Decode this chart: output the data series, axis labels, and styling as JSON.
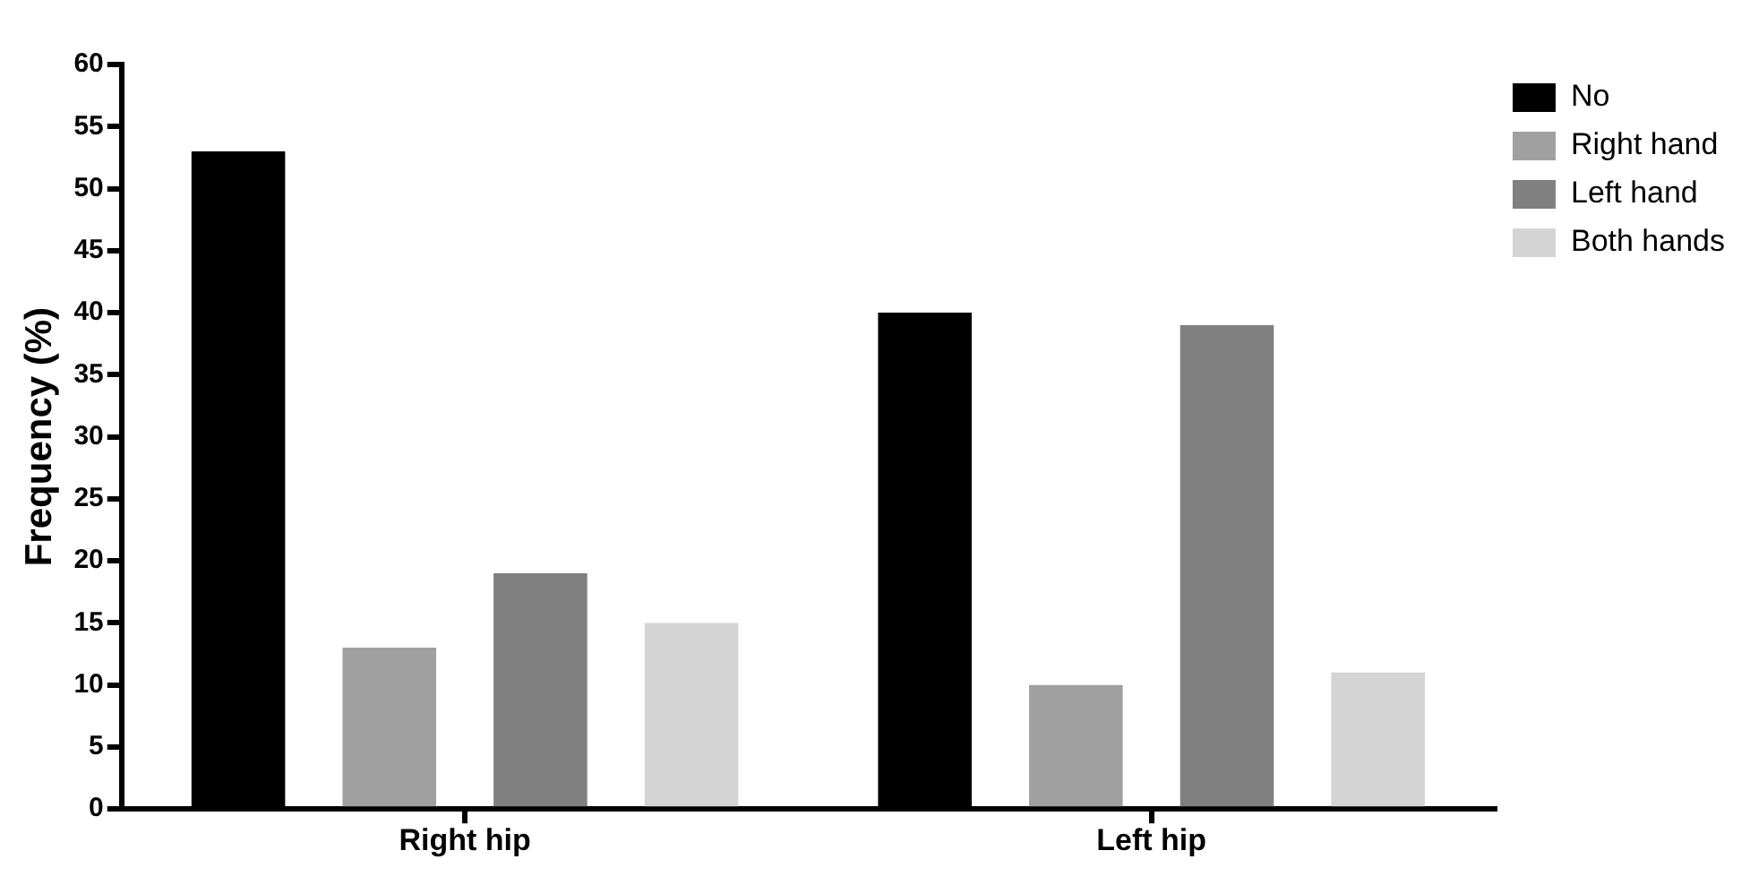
{
  "chart_data": {
    "type": "bar",
    "ylabel": "Frequency (%)",
    "categories": [
      "Right hip",
      "Left hip"
    ],
    "series": [
      {
        "name": "No",
        "color": "#000000",
        "values": [
          53,
          40
        ]
      },
      {
        "name": "Right hand",
        "color": "#a0a0a0",
        "values": [
          13,
          10
        ]
      },
      {
        "name": "Left hand",
        "color": "#808080",
        "values": [
          19,
          39
        ]
      },
      {
        "name": "Both hands",
        "color": "#d4d4d4",
        "values": [
          15,
          11
        ]
      }
    ],
    "ylim": [
      0,
      60
    ],
    "yticks": [
      0,
      5,
      10,
      15,
      20,
      25,
      30,
      35,
      40,
      45,
      50,
      55,
      60
    ],
    "grid": false,
    "legend": "top right"
  }
}
